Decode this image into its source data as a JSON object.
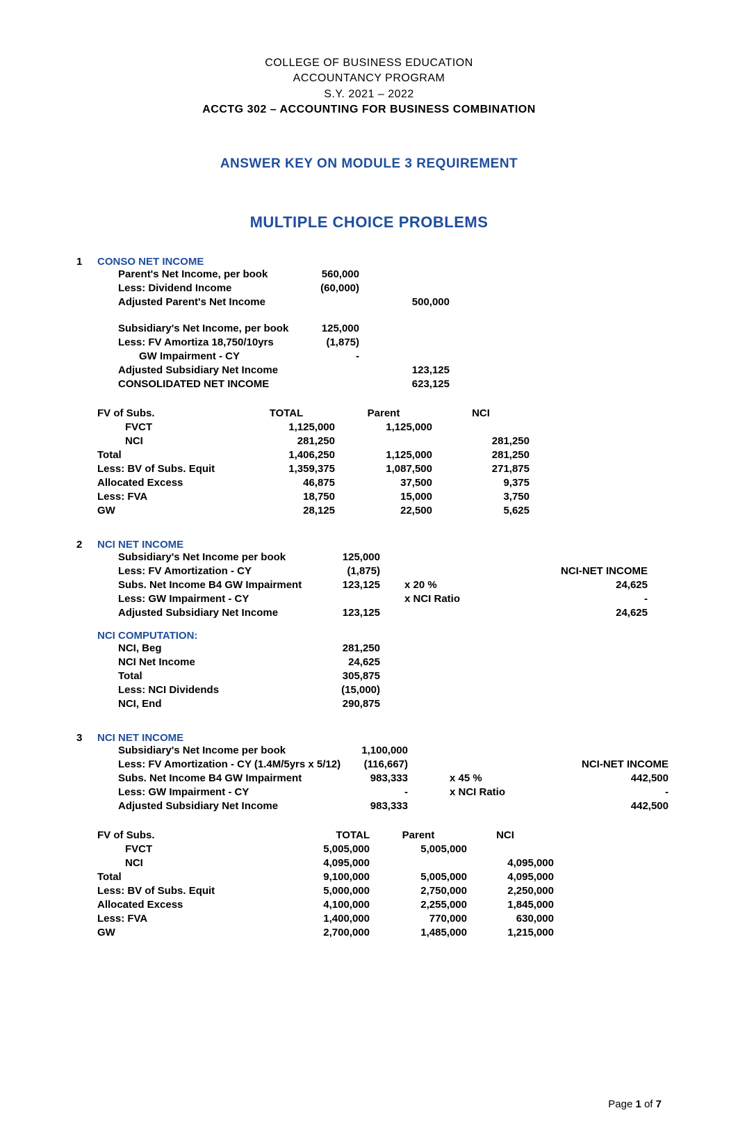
{
  "header": {
    "line1": "COLLEGE OF BUSINESS EDUCATION",
    "line2": "ACCOUNTANCY PROGRAM",
    "line3": "S.Y. 2021 – 2022",
    "line4": "ACCTG 302 – ACCOUNTING FOR BUSINESS COMBINATION"
  },
  "titles": {
    "t1": "ANSWER KEY ON MODULE 3 REQUIREMENT",
    "t2": "MULTIPLE CHOICE PROBLEMS"
  },
  "sec1": {
    "num": "1",
    "title": "CONSO NET INCOME",
    "rows": [
      {
        "label": "Parent's Net Income, per book",
        "v1": "560,000"
      },
      {
        "label": "Less: Dividend Income",
        "v1": "(60,000)"
      },
      {
        "label": "Adjusted Parent's Net Income",
        "v2": "500,000"
      },
      {
        "blank": true
      },
      {
        "label": "Subsidiary's Net Income, per book",
        "v1": "125,000"
      },
      {
        "label": "Less: FV Amortiza 18,750/10yrs",
        "v1": "(1,875)"
      },
      {
        "label": "GW Impairment - CY",
        "indent": true,
        "v1": "-"
      },
      {
        "label": "Adjusted Subsidiary Net Income",
        "v2": "123,125"
      },
      {
        "label": "CONSOLIDATED NET INCOME",
        "v2": "623,125"
      }
    ],
    "table": {
      "head": {
        "l": "FV of Subs.",
        "total": "TOTAL",
        "parent": "Parent",
        "nci": "NCI"
      },
      "rows": [
        {
          "l": "FVCT",
          "indent": true,
          "total": "1,125,000",
          "parent": "1,125,000"
        },
        {
          "l": "NCI",
          "indent": true,
          "total": "281,250",
          "nci": "281,250"
        },
        {
          "l": "Total",
          "total": "1,406,250",
          "parent": "1,125,000",
          "nci": "281,250"
        },
        {
          "l": "Less: BV of Subs. Equit",
          "total": "1,359,375",
          "parent": "1,087,500",
          "nci": "271,875"
        },
        {
          "l": "Allocated Excess",
          "total": "46,875",
          "parent": "37,500",
          "nci": "9,375"
        },
        {
          "l": "Less: FVA",
          "total": "18,750",
          "parent": "15,000",
          "nci": "3,750"
        },
        {
          "l": "GW",
          "total": "28,125",
          "parent": "22,500",
          "nci": "5,625"
        }
      ]
    }
  },
  "sec2": {
    "num": "2",
    "title": "NCI NET INCOME",
    "rightHead": "NCI-NET INCOME",
    "rows": [
      {
        "label": "Subsidiary's Net Income per book",
        "v1": "125,000"
      },
      {
        "label": "Less: FV Amortization - CY",
        "v1": "(1,875)"
      },
      {
        "label": "Subs. Net Income B4 GW Impairment",
        "v1": "123,125",
        "mul": "x 20 %",
        "v4": "24,625"
      },
      {
        "label": "Less: GW Impairment - CY",
        "mul": "x NCI Ratio",
        "v4": "-"
      },
      {
        "label": "Adjusted Subsidiary Net Income",
        "v1": "123,125",
        "v4": "24,625"
      }
    ],
    "sub": {
      "title": "NCI COMPUTATION:",
      "rows": [
        {
          "label": "NCI, Beg",
          "v1": "281,250"
        },
        {
          "label": "NCI Net Income",
          "v1": "24,625"
        },
        {
          "label": "Total",
          "v1": "305,875"
        },
        {
          "label": "Less: NCI Dividends",
          "v1": "(15,000)"
        },
        {
          "label": "NCI, End",
          "v1": "290,875"
        }
      ]
    }
  },
  "sec3": {
    "num": "3",
    "title": "NCI NET INCOME",
    "rightHead": "NCI-NET INCOME",
    "rows": [
      {
        "label": "Subsidiary's Net Income per book",
        "v1": "1,100,000"
      },
      {
        "label": "Less: FV Amortization - CY (1.4M/5yrs x 5/12)",
        "v1": "(116,667)"
      },
      {
        "label": "Subs. Net Income B4 GW Impairment",
        "v1": "983,333",
        "mul": "x 45 %",
        "v4": "442,500"
      },
      {
        "label": "Less: GW Impairment - CY",
        "v1": "-",
        "mul": "x NCI Ratio",
        "v4": "-"
      },
      {
        "label": "Adjusted Subsidiary Net Income",
        "v1": "983,333",
        "v4": "442,500"
      }
    ],
    "table": {
      "head": {
        "l": "FV of Subs.",
        "total": "TOTAL",
        "parent": "Parent",
        "nci": "NCI"
      },
      "rows": [
        {
          "l": "FVCT",
          "indent": true,
          "total": "5,005,000",
          "parent": "5,005,000"
        },
        {
          "l": "NCI",
          "indent": true,
          "total": "4,095,000",
          "nci": "4,095,000"
        },
        {
          "l": "Total",
          "total": "9,100,000",
          "parent": "5,005,000",
          "nci": "4,095,000"
        },
        {
          "l": "Less: BV of Subs. Equit",
          "total": "5,000,000",
          "parent": "2,750,000",
          "nci": "2,250,000"
        },
        {
          "l": "Allocated Excess",
          "total": "4,100,000",
          "parent": "2,255,000",
          "nci": "1,845,000"
        },
        {
          "l": "Less: FVA",
          "total": "1,400,000",
          "parent": "770,000",
          "nci": "630,000"
        },
        {
          "l": "GW",
          "total": "2,700,000",
          "parent": "1,485,000",
          "nci": "1,215,000"
        }
      ]
    }
  },
  "footer": {
    "prefix": "Page ",
    "cur": "1",
    "mid": " of ",
    "tot": "7"
  },
  "colors": {
    "accent": "#1f4e9c",
    "text": "#000000",
    "bg": "#ffffff"
  }
}
